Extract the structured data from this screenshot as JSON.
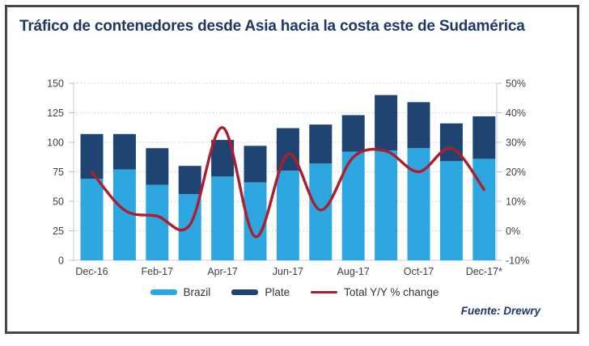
{
  "title": "Tráfico de contenedores desde Asia hacia la costa este de Sudamérica",
  "source": "Fuente: Drewry",
  "colors": {
    "title_text": "#1F3864",
    "brazil_bar": "#2EA7E0",
    "plate_bar": "#1F4472",
    "yoy_line": "#AC1E2D",
    "axis_text": "#404040",
    "gridline": "#C8C8C8",
    "frame_border": "#46474B"
  },
  "legend": {
    "items": [
      {
        "label": "Brazil"
      },
      {
        "label": "Plate"
      },
      {
        "label": "Total Y/Y % change"
      }
    ]
  },
  "chart_data": {
    "type": "bar",
    "subtype": "stacked-bars-with-line-overlay",
    "title": "Tráfico de contenedores desde Asia hacia la costa este de Sudamérica",
    "categories": [
      "Dec-16",
      "Jan-17",
      "Feb-17",
      "Mar-17",
      "Apr-17",
      "May-17",
      "Jun-17",
      "Jul-17",
      "Aug-17",
      "Sep-17",
      "Oct-17",
      "Nov-17",
      "Dec-17*"
    ],
    "x_axis_tick_labels": [
      "Dec-16",
      "Feb-17",
      "Apr-17",
      "Jun-17",
      "Aug-17",
      "Oct-17",
      "Dec-17*"
    ],
    "series": [
      {
        "name": "Brazil",
        "type": "bar",
        "stacked": true,
        "color": "#2EA7E0",
        "values": [
          69,
          77,
          64,
          56,
          71,
          66,
          76,
          82,
          92,
          93,
          95,
          84,
          86
        ]
      },
      {
        "name": "Plate",
        "type": "bar",
        "stacked": true,
        "color": "#1F4472",
        "values": [
          38,
          30,
          31,
          24,
          31,
          31,
          36,
          33,
          31,
          47,
          39,
          32,
          36
        ]
      },
      {
        "name": "Total Y/Y % change",
        "type": "line",
        "axis": "right",
        "unit": "%",
        "color": "#AC1E2D",
        "values": [
          20,
          7,
          5,
          2,
          35,
          -2,
          26,
          7,
          25,
          27,
          20,
          28,
          14
        ]
      }
    ],
    "stacked_totals": [
      107,
      107,
      95,
      80,
      102,
      97,
      112,
      115,
      123,
      140,
      134,
      116,
      122
    ],
    "left_axis": {
      "min": 0,
      "max": 150,
      "step": 25,
      "tick_labels": [
        "0",
        "25",
        "50",
        "75",
        "100",
        "125",
        "150"
      ]
    },
    "right_axis": {
      "min": -10,
      "max": 50,
      "step": 10,
      "tick_labels": [
        "-10%",
        "0%",
        "10%",
        "20%",
        "30%",
        "40%",
        "50%"
      ]
    },
    "grid": {
      "horizontal": "dotted"
    },
    "legend_position": "bottom",
    "source": "Fuente: Drewry"
  }
}
